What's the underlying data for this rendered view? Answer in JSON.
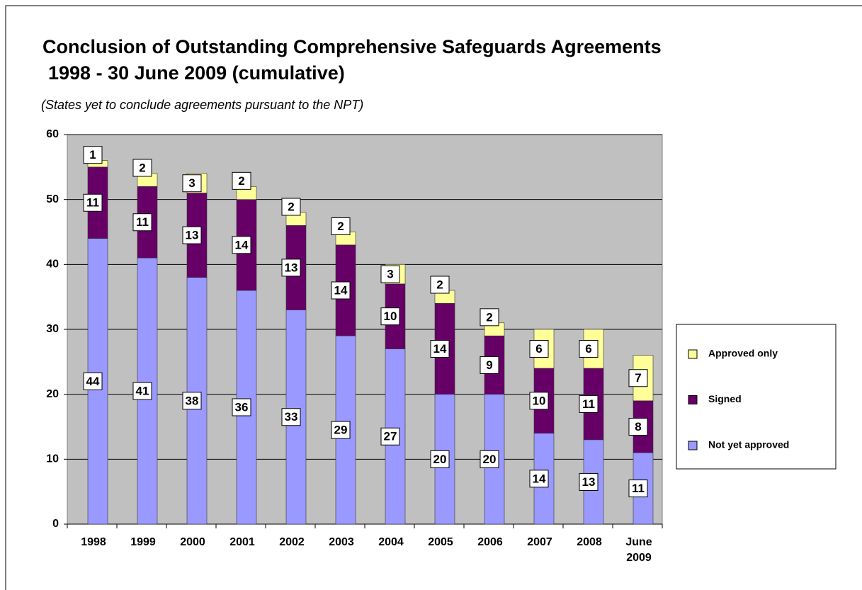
{
  "chart_data": {
    "type": "stacked_bar",
    "title": "Conclusion of Outstanding Comprehensive Safeguards Agreements",
    "subtitle": "1998 - 30 June 2009 (cumulative)",
    "note": "(States yet to conclude agreements pursuant to the NPT)",
    "categories": [
      "1998",
      "1999",
      "2000",
      "2001",
      "2002",
      "2003",
      "2004",
      "2005",
      "2006",
      "2007",
      "2008",
      "June 2009"
    ],
    "series": [
      {
        "name": "Not yet approved",
        "color": "#9999ff",
        "values": [
          44,
          41,
          38,
          36,
          33,
          29,
          27,
          20,
          20,
          14,
          13,
          11
        ]
      },
      {
        "name": "Signed",
        "color": "#660066",
        "values": [
          11,
          11,
          13,
          14,
          13,
          14,
          10,
          14,
          9,
          10,
          11,
          8
        ]
      },
      {
        "name": "Approved only",
        "color": "#ffff99",
        "values": [
          1,
          2,
          3,
          2,
          2,
          2,
          3,
          2,
          2,
          6,
          6,
          7
        ]
      }
    ],
    "ylim": [
      0,
      60
    ],
    "yticks": [
      0,
      10,
      20,
      30,
      40,
      50,
      60
    ],
    "grid": true,
    "legend": "right"
  }
}
